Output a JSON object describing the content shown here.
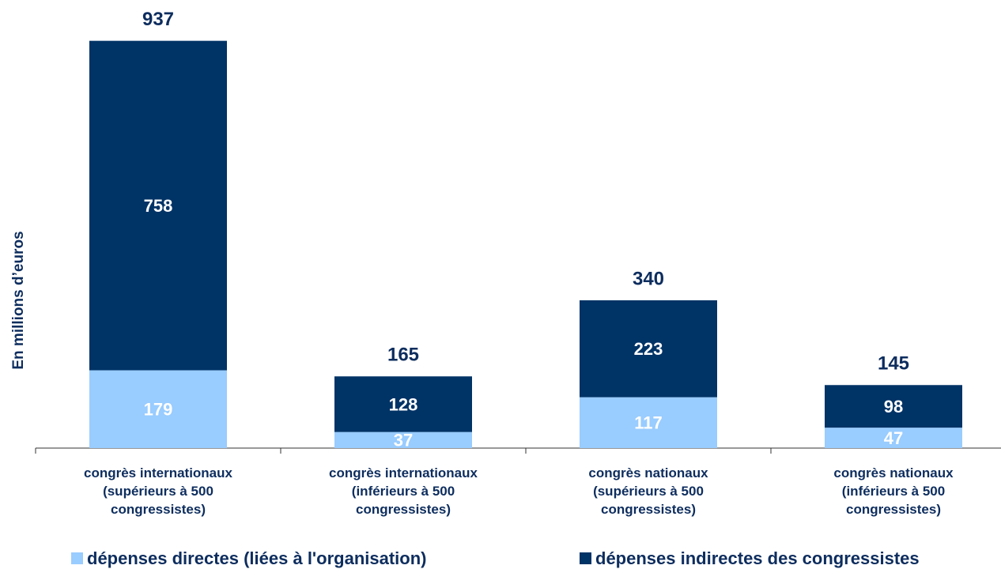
{
  "chart_data": {
    "type": "stacked_bar",
    "y_label": "En millions d’euros",
    "categories": [
      "congrès internationaux\n(supérieurs à 500\ncongressistes)",
      "congrès internationaux\n(inférieurs à 500\ncongressistes)",
      "congrès nationaux\n(supérieurs à 500\ncongressistes)",
      "congrès nationaux\n(inférieurs à 500\ncongressistes)"
    ],
    "series": [
      {
        "name": "dépenses directes (liées à l'organisation)",
        "color": "#99ccff",
        "values": [
          179,
          37,
          117,
          47
        ]
      },
      {
        "name": "dépenses indirectes des congressistes",
        "color": "#003366",
        "values": [
          758,
          128,
          223,
          98
        ]
      }
    ],
    "totals": [
      937,
      165,
      340,
      145
    ],
    "ylim": [
      0,
      1000
    ]
  }
}
